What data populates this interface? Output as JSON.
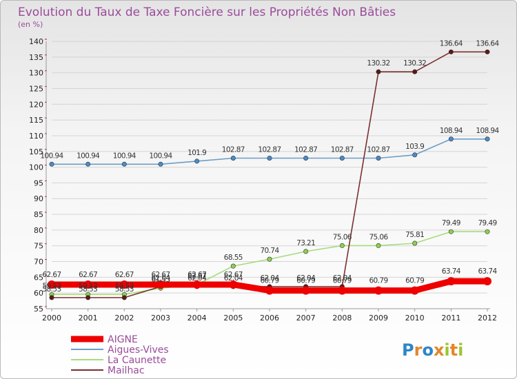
{
  "chart_data": {
    "type": "line",
    "title": "Evolution du Taux de Taxe Foncière sur les Propriétés Non Bâties",
    "subtitle": "(en %)",
    "xlabel": "",
    "ylabel": "(en %)",
    "ylim": [
      55,
      140
    ],
    "y_ticks": [
      55,
      60,
      65,
      70,
      75,
      80,
      85,
      90,
      95,
      100,
      105,
      110,
      115,
      120,
      125,
      130,
      135,
      140
    ],
    "grid": "horizontal",
    "categories": [
      "2000",
      "2001",
      "2002",
      "2003",
      "2004",
      "2005",
      "2006",
      "2007",
      "2008",
      "2009",
      "2010",
      "2011",
      "2012"
    ],
    "series": [
      {
        "name": "Aigues-Vives",
        "color": "#6b9dc6",
        "marker": "#4a8bc9",
        "values": [
          100.94,
          100.94,
          100.94,
          100.94,
          101.9,
          102.87,
          102.87,
          102.87,
          102.87,
          102.87,
          103.9,
          108.94,
          108.94
        ],
        "labels": [
          "100.94",
          "100.94",
          "100.94",
          "100.94",
          "101.9",
          "102.87",
          "102.87",
          "102.87",
          "102.87",
          "102.87",
          "103.9",
          "108.94",
          "108.94"
        ]
      },
      {
        "name": "La Caunette",
        "color": "#a7dc7c",
        "marker": "#8ed04f",
        "values": [
          59.53,
          59.53,
          59.53,
          61.53,
          62.67,
          68.55,
          70.74,
          73.21,
          75.06,
          75.06,
          75.81,
          79.49,
          79.49
        ],
        "labels": [
          "59.53",
          "59.53",
          "59.53",
          "61.53",
          "62.67",
          "68.55",
          "70.74",
          "73.21",
          "75.06",
          "75.06",
          "75.81",
          "79.49",
          "79.49"
        ]
      },
      {
        "name": "Mailhac",
        "color": "#7a2f2f",
        "marker": "#5a1a1a",
        "values": [
          58.53,
          58.53,
          58.53,
          62.04,
          62.04,
          62.04,
          62.04,
          62.04,
          62.04,
          130.32,
          130.32,
          136.64,
          136.64
        ],
        "labels": [
          "58.53",
          "58.53",
          "58.53",
          "62.04",
          "62.04",
          "62.04",
          "62.04",
          "62.04",
          "62.04",
          "130.32",
          "130.32",
          "136.64",
          "136.64"
        ]
      },
      {
        "name": "AIGNE",
        "color": "#ee0000",
        "marker": "#ee0000",
        "values": [
          62.67,
          62.67,
          62.67,
          62.67,
          62.67,
          62.67,
          60.79,
          60.79,
          60.79,
          60.79,
          60.79,
          63.74,
          63.74
        ],
        "labels": [
          "62.67",
          "62.67",
          "62.67",
          "62.67",
          "62.67",
          "62.67",
          "60.79",
          "60.79",
          "60.79",
          "60.79",
          "60.79",
          "63.74",
          "63.74"
        ]
      }
    ],
    "legend": [
      "AIGNE",
      "Aigues-Vives",
      "La Caunette",
      "Mailhac"
    ]
  },
  "branding": {
    "logo_text": "Proxiti"
  }
}
